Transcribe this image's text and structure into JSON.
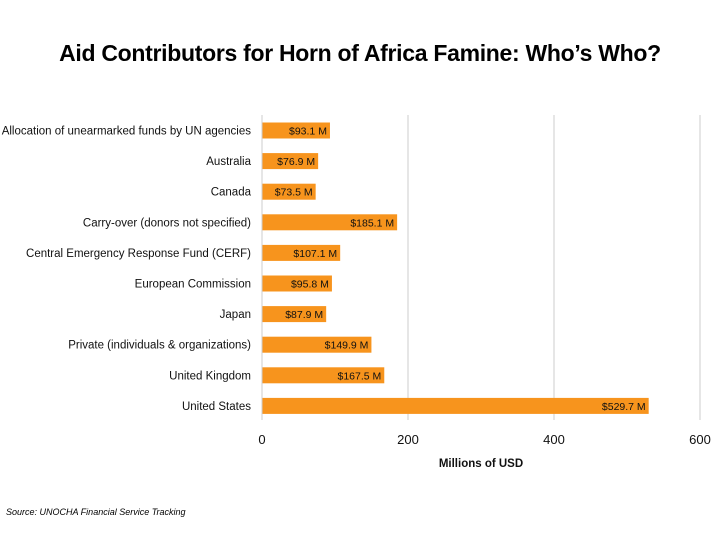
{
  "chart_data": {
    "type": "bar",
    "orientation": "horizontal",
    "title": "Aid Contributors for Horn of Africa Famine: Who’s Who?",
    "xlabel": "Millions of USD",
    "ylabel": "",
    "categories": [
      "Allocation of unearmarked funds by UN agencies",
      "Australia",
      "Canada",
      "Carry-over (donors not specified)",
      "Central Emergency Response Fund (CERF)",
      "European Commission",
      "Japan",
      "Private (individuals & organizations)",
      "United Kingdom",
      "United States"
    ],
    "values": [
      93.1,
      76.9,
      73.5,
      185.1,
      107.1,
      95.8,
      87.9,
      149.9,
      167.5,
      529.7
    ],
    "data_labels": [
      "$93.1 M",
      "$76.9 M",
      "$73.5 M",
      "$185.1 M",
      "$107.1 M",
      "$95.8 M",
      "$87.9 M",
      "$149.9 M",
      "$167.5 M",
      "$529.7 M"
    ],
    "xlim": [
      0,
      600
    ],
    "xticks": [
      0,
      200,
      400,
      600
    ],
    "xtick_labels": [
      "0",
      "200",
      "400",
      "600"
    ],
    "grid": "vertical",
    "bar_color": "#F7941D",
    "grid_color": "#cccccc",
    "source": "Source: UNOCHA Financial Service Tracking"
  }
}
